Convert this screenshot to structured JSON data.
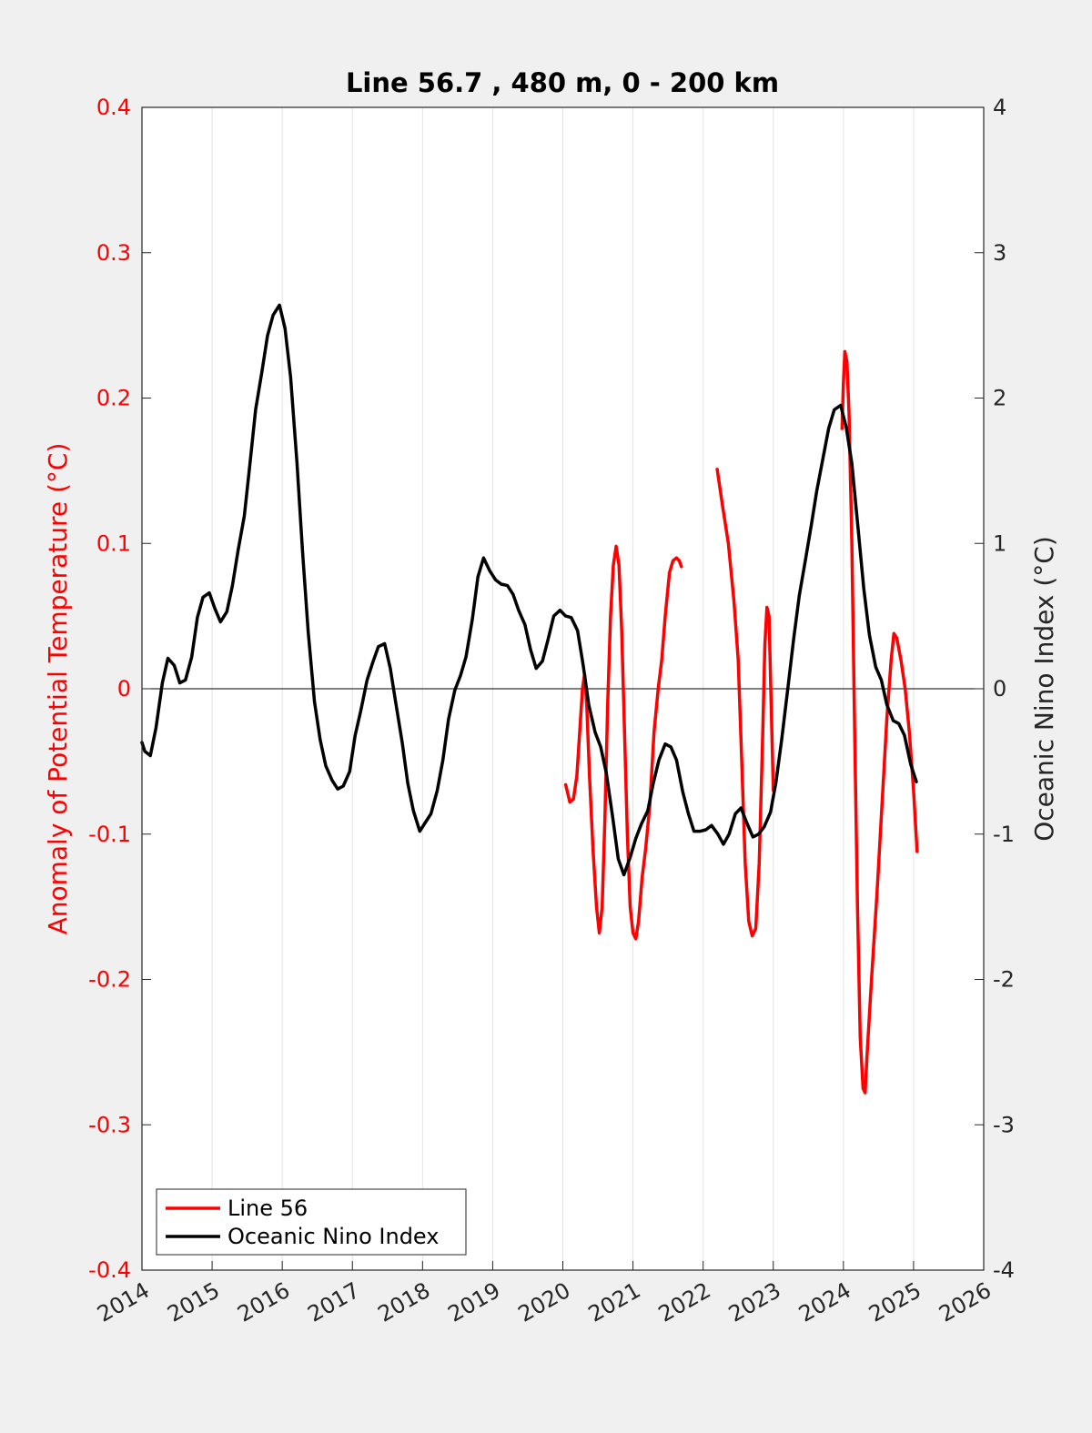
{
  "chart_data": {
    "type": "line",
    "title": "Line 56.7 , 480 m, 0 - 200 km",
    "ylabel_left": "Anomaly of Potential Temperature (°C)",
    "ylabel_right": "Oceanic Nino Index (°C)",
    "xlim": [
      2014,
      2026
    ],
    "ylim_left": [
      -0.4,
      0.4
    ],
    "ylim_right": [
      -4,
      4
    ],
    "x_ticks": [
      "2014",
      "2015",
      "2016",
      "2017",
      "2018",
      "2019",
      "2020",
      "2021",
      "2022",
      "2023",
      "2024",
      "2025",
      "2026"
    ],
    "y_ticks_left": [
      "-0.4",
      "-0.3",
      "-0.2",
      "-0.1",
      "0",
      "0.1",
      "0.2",
      "0.3",
      "0.4"
    ],
    "y_ticks_right": [
      "-4",
      "-3",
      "-2",
      "-1",
      "0",
      "1",
      "2",
      "3",
      "4"
    ],
    "grid": "vertical",
    "legend_position": "bottom-left",
    "colors": {
      "line56": "#ff0000",
      "oni": "#000000",
      "left_axis": "#ff0000"
    },
    "series": [
      {
        "name": "Line 56",
        "axis": "left",
        "segments": [
          [
            [
              2020.04,
              -0.066
            ],
            [
              2020.1,
              -0.078
            ],
            [
              2020.15,
              -0.076
            ],
            [
              2020.2,
              -0.06
            ],
            [
              2020.24,
              -0.03
            ],
            [
              2020.28,
              0.0
            ],
            [
              2020.31,
              0.01
            ],
            [
              2020.34,
              -0.01
            ],
            [
              2020.38,
              -0.06
            ],
            [
              2020.43,
              -0.11
            ],
            [
              2020.48,
              -0.15
            ],
            [
              2020.52,
              -0.168
            ],
            [
              2020.56,
              -0.15
            ],
            [
              2020.6,
              -0.09
            ],
            [
              2020.64,
              -0.01
            ],
            [
              2020.68,
              0.05
            ],
            [
              2020.72,
              0.085
            ],
            [
              2020.76,
              0.098
            ],
            [
              2020.8,
              0.085
            ],
            [
              2020.84,
              0.04
            ],
            [
              2020.88,
              -0.03
            ],
            [
              2020.92,
              -0.1
            ],
            [
              2020.96,
              -0.15
            ],
            [
              2021.0,
              -0.168
            ],
            [
              2021.04,
              -0.172
            ],
            [
              2021.08,
              -0.16
            ],
            [
              2021.13,
              -0.13
            ],
            [
              2021.18,
              -0.11
            ],
            [
              2021.24,
              -0.08
            ],
            [
              2021.3,
              -0.03
            ],
            [
              2021.36,
              0.0
            ],
            [
              2021.41,
              0.02
            ],
            [
              2021.46,
              0.05
            ],
            [
              2021.52,
              0.08
            ],
            [
              2021.57,
              0.088
            ],
            [
              2021.62,
              0.09
            ],
            [
              2021.66,
              0.088
            ],
            [
              2021.69,
              0.084
            ]
          ],
          [
            [
              2022.2,
              0.151
            ],
            [
              2022.28,
              0.125
            ],
            [
              2022.36,
              0.1
            ],
            [
              2022.44,
              0.06
            ],
            [
              2022.5,
              0.02
            ],
            [
              2022.55,
              -0.05
            ],
            [
              2022.6,
              -0.12
            ],
            [
              2022.65,
              -0.16
            ],
            [
              2022.7,
              -0.17
            ],
            [
              2022.75,
              -0.165
            ],
            [
              2022.8,
              -0.12
            ],
            [
              2022.85,
              -0.03
            ],
            [
              2022.88,
              0.03
            ],
            [
              2022.91,
              0.056
            ],
            [
              2022.94,
              0.05
            ],
            [
              2022.97,
              -0.01
            ],
            [
              2023.0,
              -0.07
            ]
          ],
          [
            [
              2023.98,
              0.179
            ],
            [
              2024.0,
              0.21
            ],
            [
              2024.02,
              0.232
            ],
            [
              2024.05,
              0.225
            ],
            [
              2024.08,
              0.19
            ],
            [
              2024.12,
              0.1
            ],
            [
              2024.16,
              -0.03
            ],
            [
              2024.2,
              -0.15
            ],
            [
              2024.24,
              -0.24
            ],
            [
              2024.28,
              -0.275
            ],
            [
              2024.31,
              -0.278
            ],
            [
              2024.34,
              -0.25
            ],
            [
              2024.4,
              -0.2
            ],
            [
              2024.48,
              -0.14
            ],
            [
              2024.55,
              -0.08
            ],
            [
              2024.62,
              -0.02
            ],
            [
              2024.68,
              0.02
            ],
            [
              2024.72,
              0.038
            ],
            [
              2024.76,
              0.035
            ],
            [
              2024.82,
              0.02
            ],
            [
              2024.88,
              0.0
            ],
            [
              2024.94,
              -0.03
            ],
            [
              2025.0,
              -0.07
            ],
            [
              2025.05,
              -0.112
            ]
          ]
        ]
      },
      {
        "name": "Oceanic Nino Index",
        "axis": "right",
        "segments": [
          [
            [
              2014.0,
              -0.37
            ],
            [
              2014.04,
              -0.43
            ],
            [
              2014.12,
              -0.46
            ],
            [
              2014.2,
              -0.27
            ],
            [
              2014.29,
              0.04
            ],
            [
              2014.37,
              0.21
            ],
            [
              2014.46,
              0.16
            ],
            [
              2014.54,
              0.04
            ],
            [
              2014.62,
              0.06
            ],
            [
              2014.71,
              0.22
            ],
            [
              2014.79,
              0.49
            ],
            [
              2014.87,
              0.63
            ],
            [
              2014.96,
              0.66
            ],
            [
              2015.04,
              0.55
            ],
            [
              2015.12,
              0.46
            ],
            [
              2015.21,
              0.53
            ],
            [
              2015.29,
              0.71
            ],
            [
              2015.37,
              0.95
            ],
            [
              2015.46,
              1.19
            ],
            [
              2015.54,
              1.55
            ],
            [
              2015.62,
              1.92
            ],
            [
              2015.71,
              2.18
            ],
            [
              2015.79,
              2.43
            ],
            [
              2015.87,
              2.57
            ],
            [
              2015.96,
              2.64
            ],
            [
              2016.04,
              2.48
            ],
            [
              2016.12,
              2.14
            ],
            [
              2016.21,
              1.55
            ],
            [
              2016.29,
              0.94
            ],
            [
              2016.37,
              0.39
            ],
            [
              2016.46,
              -0.09
            ],
            [
              2016.54,
              -0.35
            ],
            [
              2016.62,
              -0.53
            ],
            [
              2016.71,
              -0.63
            ],
            [
              2016.79,
              -0.69
            ],
            [
              2016.87,
              -0.67
            ],
            [
              2016.96,
              -0.57
            ],
            [
              2017.04,
              -0.32
            ],
            [
              2017.12,
              -0.15
            ],
            [
              2017.21,
              0.06
            ],
            [
              2017.29,
              0.18
            ],
            [
              2017.37,
              0.29
            ],
            [
              2017.46,
              0.31
            ],
            [
              2017.54,
              0.14
            ],
            [
              2017.62,
              -0.1
            ],
            [
              2017.71,
              -0.37
            ],
            [
              2017.79,
              -0.65
            ],
            [
              2017.87,
              -0.84
            ],
            [
              2017.96,
              -0.98
            ],
            [
              2018.04,
              -0.92
            ],
            [
              2018.12,
              -0.86
            ],
            [
              2018.21,
              -0.7
            ],
            [
              2018.29,
              -0.49
            ],
            [
              2018.37,
              -0.21
            ],
            [
              2018.46,
              -0.01
            ],
            [
              2018.54,
              0.09
            ],
            [
              2018.62,
              0.22
            ],
            [
              2018.71,
              0.48
            ],
            [
              2018.79,
              0.77
            ],
            [
              2018.87,
              0.9
            ],
            [
              2018.96,
              0.81
            ],
            [
              2019.04,
              0.75
            ],
            [
              2019.12,
              0.72
            ],
            [
              2019.21,
              0.71
            ],
            [
              2019.29,
              0.65
            ],
            [
              2019.37,
              0.54
            ],
            [
              2019.46,
              0.44
            ],
            [
              2019.54,
              0.27
            ],
            [
              2019.62,
              0.14
            ],
            [
              2019.71,
              0.19
            ],
            [
              2019.79,
              0.34
            ],
            [
              2019.87,
              0.5
            ],
            [
              2019.96,
              0.54
            ],
            [
              2020.04,
              0.5
            ],
            [
              2020.12,
              0.49
            ],
            [
              2020.21,
              0.4
            ],
            [
              2020.29,
              0.16
            ],
            [
              2020.37,
              -0.11
            ],
            [
              2020.46,
              -0.3
            ],
            [
              2020.54,
              -0.4
            ],
            [
              2020.62,
              -0.58
            ],
            [
              2020.71,
              -0.88
            ],
            [
              2020.79,
              -1.17
            ],
            [
              2020.87,
              -1.28
            ],
            [
              2020.96,
              -1.16
            ],
            [
              2021.04,
              -1.03
            ],
            [
              2021.12,
              -0.93
            ],
            [
              2021.21,
              -0.84
            ],
            [
              2021.29,
              -0.65
            ],
            [
              2021.37,
              -0.49
            ],
            [
              2021.46,
              -0.38
            ],
            [
              2021.54,
              -0.4
            ],
            [
              2021.62,
              -0.49
            ],
            [
              2021.71,
              -0.71
            ],
            [
              2021.79,
              -0.86
            ],
            [
              2021.87,
              -0.98
            ],
            [
              2021.96,
              -0.98
            ],
            [
              2022.04,
              -0.97
            ],
            [
              2022.12,
              -0.94
            ],
            [
              2022.21,
              -1.0
            ],
            [
              2022.29,
              -1.07
            ],
            [
              2022.37,
              -1.0
            ],
            [
              2022.46,
              -0.86
            ],
            [
              2022.54,
              -0.82
            ],
            [
              2022.62,
              -0.92
            ],
            [
              2022.71,
              -1.02
            ],
            [
              2022.79,
              -1.0
            ],
            [
              2022.87,
              -0.95
            ],
            [
              2022.96,
              -0.85
            ],
            [
              2023.04,
              -0.64
            ],
            [
              2023.12,
              -0.35
            ],
            [
              2023.21,
              0.01
            ],
            [
              2023.29,
              0.34
            ],
            [
              2023.37,
              0.64
            ],
            [
              2023.46,
              0.89
            ],
            [
              2023.54,
              1.12
            ],
            [
              2023.62,
              1.36
            ],
            [
              2023.71,
              1.59
            ],
            [
              2023.79,
              1.79
            ],
            [
              2023.87,
              1.92
            ],
            [
              2023.96,
              1.95
            ],
            [
              2024.04,
              1.8
            ],
            [
              2024.12,
              1.55
            ],
            [
              2024.21,
              1.1
            ],
            [
              2024.29,
              0.69
            ],
            [
              2024.37,
              0.37
            ],
            [
              2024.46,
              0.15
            ],
            [
              2024.54,
              0.06
            ],
            [
              2024.62,
              -0.11
            ],
            [
              2024.71,
              -0.22
            ],
            [
              2024.79,
              -0.24
            ],
            [
              2024.87,
              -0.32
            ],
            [
              2024.96,
              -0.52
            ],
            [
              2025.04,
              -0.64
            ]
          ]
        ]
      }
    ]
  }
}
